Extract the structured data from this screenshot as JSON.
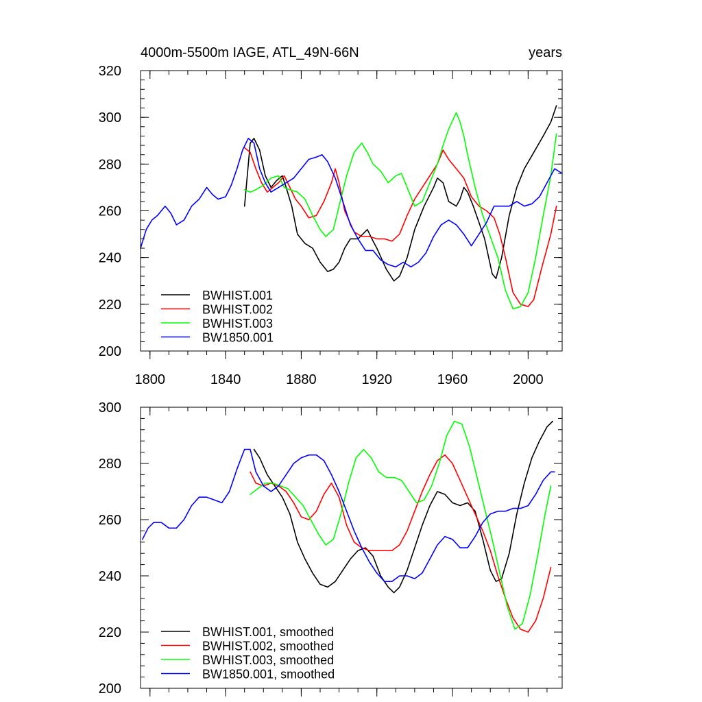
{
  "chart_data": [
    {
      "type": "line",
      "title_left": "4000m-5500m IAGE, ATL_49N-66N",
      "title_right": "years",
      "xlabel": "",
      "ylabel": "",
      "xlim": [
        1795,
        2018
      ],
      "ylim": [
        200,
        320
      ],
      "xticks": [
        1800,
        1840,
        1880,
        1920,
        1960,
        2000
      ],
      "yticks": [
        200,
        220,
        240,
        260,
        280,
        300,
        320
      ],
      "show_x_tick_labels": true,
      "legend_position": "bottom-left",
      "series": [
        {
          "name": "BWHIST.001",
          "color": "#000000",
          "x": [
            1850,
            1853,
            1855,
            1858,
            1861,
            1864,
            1867,
            1870,
            1872,
            1875,
            1878,
            1882,
            1886,
            1890,
            1894,
            1897,
            1900,
            1903,
            1906,
            1910,
            1915,
            1918,
            1920,
            1925,
            1929,
            1932,
            1936,
            1940,
            1945,
            1950,
            1952,
            1955,
            1958,
            1962,
            1964,
            1966,
            1968,
            1971,
            1974,
            1977,
            1981,
            1983,
            1986,
            1990,
            1994,
            1998,
            2003,
            2008,
            2012,
            2015
          ],
          "y": [
            262,
            289,
            291,
            286,
            275,
            270,
            273,
            275,
            270,
            262,
            250,
            246,
            244,
            238,
            234,
            235,
            238,
            244,
            248,
            248,
            252,
            247,
            244,
            235,
            230,
            232,
            240,
            252,
            262,
            270,
            274,
            272,
            264,
            262,
            265,
            270,
            268,
            262,
            255,
            248,
            233,
            231,
            240,
            258,
            270,
            278,
            285,
            292,
            298,
            305
          ]
        },
        {
          "name": "BWHIST.002",
          "color": "#ff0000",
          "x": [
            1850,
            1853,
            1856,
            1859,
            1862,
            1865,
            1868,
            1871,
            1874,
            1877,
            1880,
            1884,
            1888,
            1892,
            1896,
            1898,
            1900,
            1903,
            1908,
            1912,
            1916,
            1920,
            1924,
            1928,
            1932,
            1936,
            1940,
            1944,
            1948,
            1952,
            1955,
            1958,
            1962,
            1966,
            1970,
            1974,
            1978,
            1982,
            1985,
            1988,
            1992,
            1996,
            2000,
            2003,
            2007,
            2012,
            2015
          ],
          "y": [
            287,
            285,
            278,
            272,
            268,
            270,
            272,
            275,
            270,
            265,
            262,
            257,
            258,
            264,
            272,
            278,
            272,
            260,
            251,
            249,
            249,
            248,
            248,
            247,
            250,
            258,
            265,
            270,
            275,
            280,
            286,
            282,
            278,
            274,
            266,
            262,
            260,
            257,
            250,
            240,
            225,
            220,
            219,
            222,
            235,
            250,
            262
          ]
        },
        {
          "name": "BWHIST.003",
          "color": "#00ff00",
          "x": [
            1850,
            1853,
            1856,
            1860,
            1864,
            1868,
            1871,
            1874,
            1878,
            1882,
            1886,
            1890,
            1893,
            1897,
            1900,
            1904,
            1908,
            1912,
            1915,
            1918,
            1922,
            1926,
            1930,
            1933,
            1936,
            1940,
            1944,
            1948,
            1952,
            1955,
            1958,
            1962,
            1964,
            1966,
            1968,
            1972,
            1976,
            1980,
            1984,
            1988,
            1992,
            1996,
            2000,
            2004,
            2008,
            2012,
            2015
          ],
          "y": [
            269,
            268,
            269,
            271,
            274,
            275,
            270,
            269,
            268,
            265,
            258,
            252,
            249,
            252,
            262,
            275,
            285,
            289,
            285,
            280,
            277,
            272,
            275,
            276,
            270,
            262,
            264,
            272,
            280,
            288,
            295,
            302,
            298,
            292,
            284,
            270,
            258,
            249,
            240,
            226,
            218,
            219,
            225,
            240,
            258,
            275,
            293
          ]
        },
        {
          "name": "BW1850.001",
          "color": "#0000ff",
          "x": [
            1795,
            1798,
            1801,
            1804,
            1808,
            1811,
            1814,
            1818,
            1822,
            1826,
            1830,
            1833,
            1836,
            1840,
            1843,
            1846,
            1849,
            1852,
            1855,
            1858,
            1861,
            1864,
            1868,
            1872,
            1876,
            1880,
            1884,
            1888,
            1891,
            1894,
            1898,
            1902,
            1906,
            1910,
            1914,
            1918,
            1922,
            1926,
            1930,
            1934,
            1938,
            1942,
            1946,
            1950,
            1954,
            1958,
            1962,
            1966,
            1970,
            1974,
            1978,
            1982,
            1986,
            1990,
            1994,
            1998,
            2002,
            2006,
            2010,
            2014,
            2018
          ],
          "y": [
            244,
            252,
            256,
            258,
            262,
            259,
            254,
            256,
            262,
            265,
            270,
            267,
            265,
            266,
            271,
            278,
            286,
            291,
            289,
            278,
            272,
            268,
            270,
            272,
            274,
            278,
            282,
            283,
            284,
            281,
            274,
            264,
            254,
            248,
            243,
            243,
            239,
            237,
            236,
            238,
            236,
            238,
            242,
            249,
            254,
            256,
            254,
            250,
            245,
            250,
            255,
            262,
            262,
            262,
            264,
            262,
            263,
            266,
            272,
            278,
            276
          ]
        }
      ]
    },
    {
      "type": "line",
      "title_left": "",
      "title_right": "",
      "xlabel": "",
      "ylabel": "",
      "xlim": [
        1795,
        2018
      ],
      "ylim": [
        200,
        300
      ],
      "xticks": [
        1800,
        1840,
        1880,
        1920,
        1960,
        2000
      ],
      "yticks": [
        200,
        220,
        240,
        260,
        280,
        300
      ],
      "show_x_tick_labels": false,
      "legend_position": "bottom-left",
      "series": [
        {
          "name": "BWHIST.001, smoothed",
          "color": "#000000",
          "x": [
            1855,
            1858,
            1862,
            1866,
            1870,
            1874,
            1878,
            1882,
            1886,
            1890,
            1894,
            1898,
            1902,
            1906,
            1910,
            1914,
            1918,
            1922,
            1926,
            1929,
            1932,
            1936,
            1940,
            1944,
            1948,
            1952,
            1956,
            1960,
            1964,
            1968,
            1972,
            1976,
            1980,
            1983,
            1986,
            1990,
            1994,
            1998,
            2002,
            2006,
            2010,
            2013
          ],
          "y": [
            285,
            282,
            276,
            272,
            268,
            262,
            252,
            246,
            241,
            237,
            236,
            238,
            242,
            246,
            249,
            250,
            247,
            240,
            236,
            234,
            236,
            242,
            250,
            258,
            265,
            270,
            269,
            266,
            265,
            266,
            263,
            253,
            242,
            238,
            239,
            248,
            262,
            273,
            282,
            288,
            293,
            295
          ]
        },
        {
          "name": "BWHIST.002, smoothed",
          "color": "#ff0000",
          "x": [
            1853,
            1856,
            1860,
            1864,
            1868,
            1872,
            1876,
            1880,
            1884,
            1888,
            1892,
            1896,
            1900,
            1904,
            1908,
            1912,
            1916,
            1920,
            1924,
            1928,
            1932,
            1936,
            1940,
            1944,
            1948,
            1952,
            1956,
            1960,
            1964,
            1968,
            1972,
            1976,
            1980,
            1984,
            1988,
            1992,
            1996,
            2000,
            2004,
            2008,
            2012
          ],
          "y": [
            277,
            273,
            272,
            273,
            272,
            270,
            266,
            261,
            260,
            263,
            269,
            273,
            268,
            258,
            252,
            250,
            249,
            249,
            249,
            249,
            251,
            256,
            263,
            270,
            276,
            281,
            283,
            280,
            274,
            268,
            262,
            256,
            249,
            240,
            232,
            225,
            221,
            220,
            224,
            232,
            243
          ]
        },
        {
          "name": "BWHIST.003, smoothed",
          "color": "#00ff00",
          "x": [
            1853,
            1857,
            1861,
            1865,
            1869,
            1873,
            1877,
            1881,
            1885,
            1889,
            1893,
            1897,
            1901,
            1905,
            1909,
            1913,
            1917,
            1921,
            1925,
            1929,
            1933,
            1937,
            1941,
            1945,
            1949,
            1953,
            1957,
            1961,
            1965,
            1969,
            1973,
            1977,
            1981,
            1985,
            1989,
            1993,
            1997,
            2001,
            2005,
            2009,
            2012
          ],
          "y": [
            269,
            271,
            273,
            273,
            272,
            271,
            268,
            265,
            260,
            255,
            251,
            253,
            262,
            273,
            282,
            285,
            282,
            277,
            275,
            275,
            274,
            270,
            266,
            267,
            272,
            280,
            290,
            295,
            294,
            286,
            275,
            264,
            253,
            241,
            229,
            221,
            223,
            233,
            247,
            262,
            272
          ]
        },
        {
          "name": "BW1850.001, smoothed",
          "color": "#0000ff",
          "x": [
            1796,
            1799,
            1802,
            1806,
            1810,
            1814,
            1818,
            1822,
            1826,
            1830,
            1834,
            1838,
            1842,
            1846,
            1850,
            1853,
            1856,
            1860,
            1864,
            1868,
            1872,
            1876,
            1880,
            1884,
            1888,
            1892,
            1896,
            1900,
            1904,
            1908,
            1912,
            1916,
            1920,
            1924,
            1928,
            1932,
            1936,
            1940,
            1944,
            1948,
            1952,
            1956,
            1960,
            1964,
            1968,
            1972,
            1976,
            1980,
            1984,
            1988,
            1992,
            1996,
            2000,
            2004,
            2008,
            2012,
            2014
          ],
          "y": [
            253,
            257,
            259,
            259,
            257,
            257,
            260,
            265,
            268,
            268,
            267,
            266,
            270,
            278,
            285,
            285,
            277,
            272,
            270,
            272,
            276,
            280,
            282,
            283,
            283,
            281,
            276,
            270,
            263,
            256,
            250,
            245,
            241,
            238,
            238,
            240,
            240,
            239,
            241,
            246,
            251,
            254,
            253,
            250,
            250,
            254,
            259,
            262,
            263,
            263,
            264,
            264,
            265,
            269,
            274,
            277,
            277
          ]
        }
      ]
    }
  ]
}
